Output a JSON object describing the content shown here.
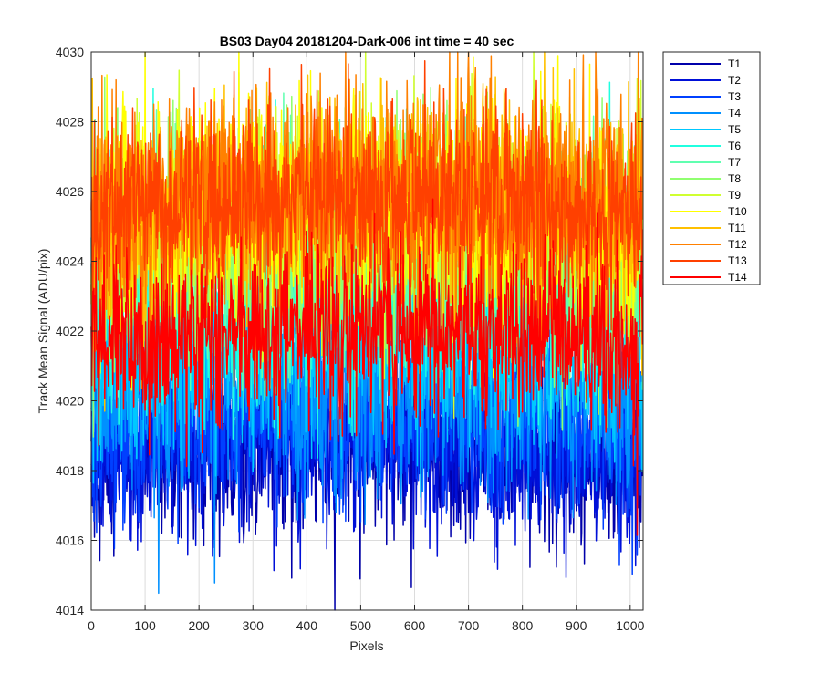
{
  "chart_data": {
    "type": "line",
    "title": "BS03 Day04 20181204-Dark-006 int time = 40 sec",
    "xlabel": "Pixels",
    "ylabel": "Track Mean Signal (ADU/pix)",
    "xlim": [
      0,
      1024
    ],
    "ylim": [
      4014,
      4030
    ],
    "xticks": [
      0,
      100,
      200,
      300,
      400,
      500,
      600,
      700,
      800,
      900,
      1000
    ],
    "yticks": [
      4014,
      4016,
      4018,
      4020,
      4022,
      4024,
      4026,
      4028,
      4030
    ],
    "grid": true,
    "legend_position": "outside-top-right",
    "series": [
      {
        "name": "T1",
        "color": "#0000aa",
        "mean": 4018.5,
        "noise": 1.3
      },
      {
        "name": "T2",
        "color": "#0010d8",
        "mean": 4018.7,
        "noise": 1.3
      },
      {
        "name": "T3",
        "color": "#0040ff",
        "mean": 4019.3,
        "noise": 1.3
      },
      {
        "name": "T4",
        "color": "#0090ff",
        "mean": 4020.3,
        "noise": 1.4
      },
      {
        "name": "T5",
        "color": "#00c8ff",
        "mean": 4021.6,
        "noise": 1.5
      },
      {
        "name": "T6",
        "color": "#20ffe0",
        "mean": 4023.0,
        "noise": 1.6
      },
      {
        "name": "T7",
        "color": "#60ffb0",
        "mean": 4023.8,
        "noise": 1.6
      },
      {
        "name": "T8",
        "color": "#90ff70",
        "mean": 4024.5,
        "noise": 1.7
      },
      {
        "name": "T9",
        "color": "#d0ff30",
        "mean": 4025.0,
        "noise": 1.6
      },
      {
        "name": "T10",
        "color": "#ffff00",
        "mean": 4025.3,
        "noise": 1.6
      },
      {
        "name": "T11",
        "color": "#ffc000",
        "mean": 4025.5,
        "noise": 1.5
      },
      {
        "name": "T12",
        "color": "#ff8000",
        "mean": 4025.8,
        "noise": 1.6
      },
      {
        "name": "T13",
        "color": "#ff4000",
        "mean": 4025.5,
        "noise": 1.3
      },
      {
        "name": "T14",
        "color": "#ff0000",
        "mean": 4021.8,
        "noise": 1.2
      }
    ]
  }
}
